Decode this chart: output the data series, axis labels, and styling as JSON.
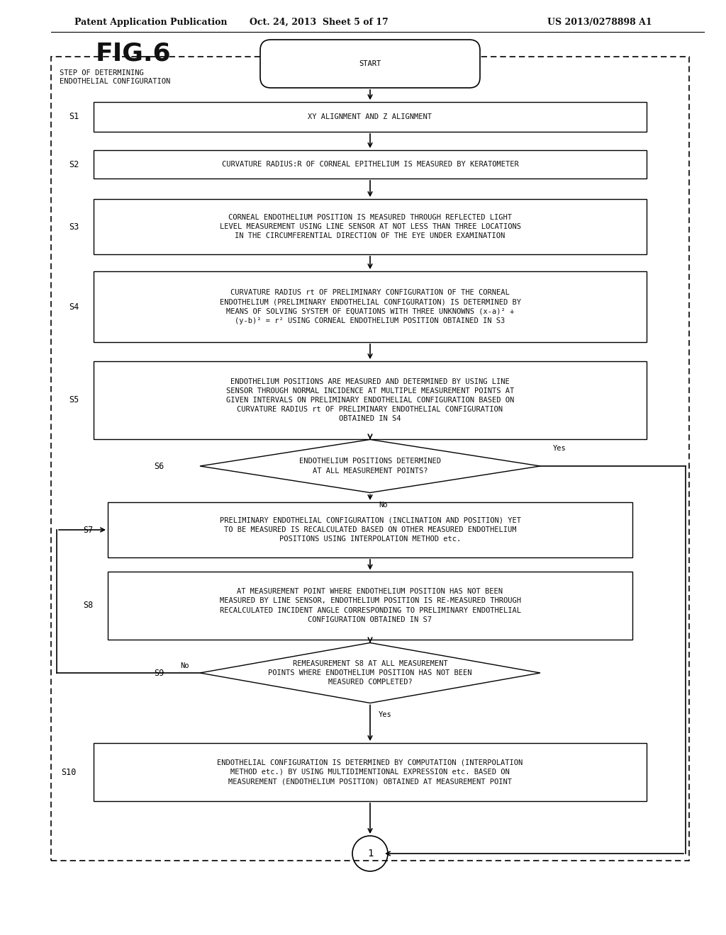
{
  "header_left": "Patent Application Publication",
  "header_mid": "Oct. 24, 2013  Sheet 5 of 17",
  "header_right": "US 2013/0278898 A1",
  "fig_label": "FIG.6",
  "outer_label": "STEP OF DETERMINING\nENDOTHELIAL CONFIGURATION",
  "start_label": "START",
  "steps": [
    {
      "id": "S1",
      "type": "rect",
      "text": "XY ALIGNMENT AND Z ALIGNMENT"
    },
    {
      "id": "S2",
      "type": "rect",
      "text": "CURVATURE RADIUS:R OF CORNEAL EPITHELIUM IS MEASURED BY KERATOMETER"
    },
    {
      "id": "S3",
      "type": "rect",
      "text": "CORNEAL ENDOTHELIUM POSITION IS MEASURED THROUGH REFLECTED LIGHT\nLEVEL MEASUREMENT USING LINE SENSOR AT NOT LESS THAN THREE LOCATIONS\nIN THE CIRCUMFERENTIAL DIRECTION OF THE EYE UNDER EXAMINATION"
    },
    {
      "id": "S4",
      "type": "rect",
      "text": "CURVATURE RADIUS rt OF PRELIMINARY CONFIGURATION OF THE CORNEAL\nENDOTHELIUM (PRELIMINARY ENDOTHELIAL CONFIGURATION) IS DETERMINED BY\nMEANS OF SOLVING SYSTEM OF EQUATIONS WITH THREE UNKNOWNS (x-a)² +\n(y-b)² = r² USING CORNEAL ENDOTHELIUM POSITION OBTAINED IN S3"
    },
    {
      "id": "S5",
      "type": "rect",
      "text": "ENDOTHELIUM POSITIONS ARE MEASURED AND DETERMINED BY USING LINE\nSENSOR THROUGH NORMAL INCIDENCE AT MULTIPLE MEASUREMENT POINTS AT\nGIVEN INTERVALS ON PRELIMINARY ENDOTHELIAL CONFIGURATION BASED ON\nCURVATURE RADIUS rt OF PRELIMINARY ENDOTHELIAL CONFIGURATION\nOBTAINED IN S4"
    },
    {
      "id": "S6",
      "type": "diamond",
      "text": "ENDOTHELIUM POSITIONS DETERMINED\nAT ALL MEASUREMENT POINTS?"
    },
    {
      "id": "S7",
      "type": "rect",
      "text": "PRELIMINARY ENDOTHELIAL CONFIGURATION (INCLINATION AND POSITION) YET\nTO BE MEASURED IS RECALCULATED BASED ON OTHER MEASURED ENDOTHELIUM\nPOSITIONS USING INTERPOLATION METHOD etc."
    },
    {
      "id": "S8",
      "type": "rect",
      "text": "AT MEASUREMENT POINT WHERE ENDOTHELIUM POSITION HAS NOT BEEN\nMEASURED BY LINE SENSOR, ENDOTHELIUM POSITION IS RE-MEASURED THROUGH\nRECALCULATED INCIDENT ANGLE CORRESPONDING TO PRELIMINARY ENDOTHELIAL\nCONFIGURATION OBTAINED IN S7"
    },
    {
      "id": "S9",
      "type": "diamond",
      "text": "REMEASUREMENT S8 AT ALL MEASUREMENT\nPOINTS WHERE ENDOTHELIUM POSITION HAS NOT BEEN\nMEASURED COMPLETED?"
    },
    {
      "id": "S10",
      "type": "rect",
      "text": "ENDOTHELIAL CONFIGURATION IS DETERMINED BY COMPUTATION (INTERPOLATION\nMETHOD etc.) BY USING MULTIDIMENTIONAL EXPRESSION etc. BASED ON\nMEASUREMENT (ENDOTHELIUM POSITION) OBTAINED AT MEASUREMENT POINT"
    }
  ],
  "connector_label": "1",
  "bg_color": "#ffffff",
  "box_color": "#000000",
  "text_color": "#000000",
  "font_size": 7.5,
  "title_font_size": 28
}
